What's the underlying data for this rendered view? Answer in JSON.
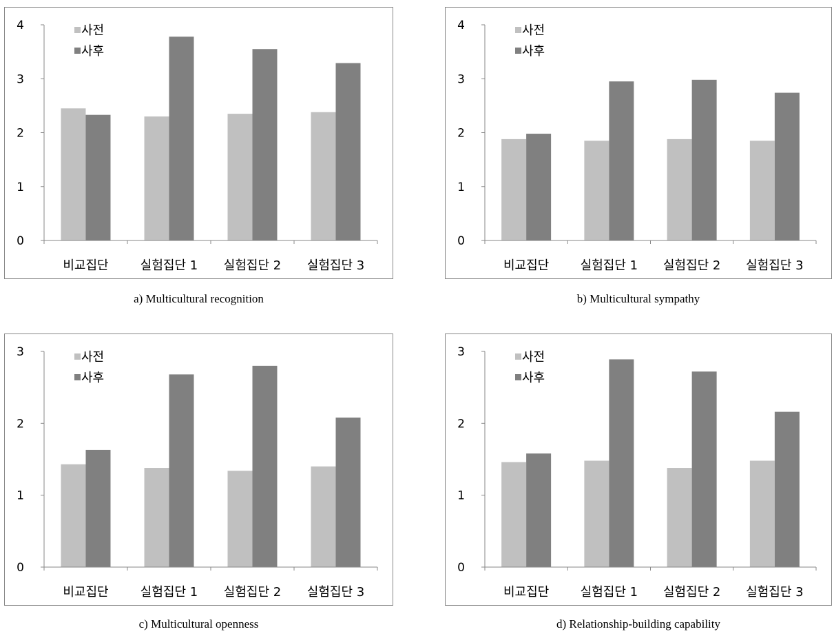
{
  "colors": {
    "pre": "#c0c0c0",
    "post": "#808080"
  },
  "chart_data": [
    {
      "type": "bar",
      "caption": "a) Multicultural recognition",
      "categories": [
        "비교집단",
        "실험집단 1",
        "실험집단 2",
        "실험집단 3"
      ],
      "series": [
        {
          "name": "사전",
          "values": [
            2.45,
            2.3,
            2.35,
            2.38
          ]
        },
        {
          "name": "사후",
          "values": [
            2.33,
            3.78,
            3.55,
            3.29
          ]
        }
      ],
      "ylim": [
        0,
        4
      ],
      "yticks": [
        0,
        1,
        2,
        3,
        4
      ],
      "legend": "top-left",
      "grid": false
    },
    {
      "type": "bar",
      "caption": "b) Multicultural sympathy",
      "categories": [
        "비교집단",
        "실험집단 1",
        "실험집단 2",
        "실험집단 3"
      ],
      "series": [
        {
          "name": "사전",
          "values": [
            1.88,
            1.85,
            1.88,
            1.85
          ]
        },
        {
          "name": "사후",
          "values": [
            1.98,
            2.95,
            2.98,
            2.74
          ]
        }
      ],
      "ylim": [
        0,
        4
      ],
      "yticks": [
        0,
        1,
        2,
        3,
        4
      ],
      "legend": "top-left",
      "grid": false
    },
    {
      "type": "bar",
      "caption": "c) Multicultural openness",
      "categories": [
        "비교집단",
        "실험집단 1",
        "실험집단 2",
        "실험집단 3"
      ],
      "series": [
        {
          "name": "사전",
          "values": [
            1.43,
            1.38,
            1.34,
            1.4
          ]
        },
        {
          "name": "사후",
          "values": [
            1.63,
            2.68,
            2.8,
            2.08
          ]
        }
      ],
      "ylim": [
        0,
        3
      ],
      "yticks": [
        0,
        1,
        2,
        3
      ],
      "legend": "top-left",
      "grid": false
    },
    {
      "type": "bar",
      "caption": "d) Relationship-building capability",
      "categories": [
        "비교집단",
        "실험집단 1",
        "실험집단 2",
        "실험집단 3"
      ],
      "series": [
        {
          "name": "사전",
          "values": [
            1.46,
            1.48,
            1.38,
            1.48
          ]
        },
        {
          "name": "사후",
          "values": [
            1.58,
            2.89,
            2.72,
            2.16
          ]
        }
      ],
      "ylim": [
        0,
        3
      ],
      "yticks": [
        0,
        1,
        2,
        3
      ],
      "legend": "top-left",
      "grid": false
    }
  ]
}
